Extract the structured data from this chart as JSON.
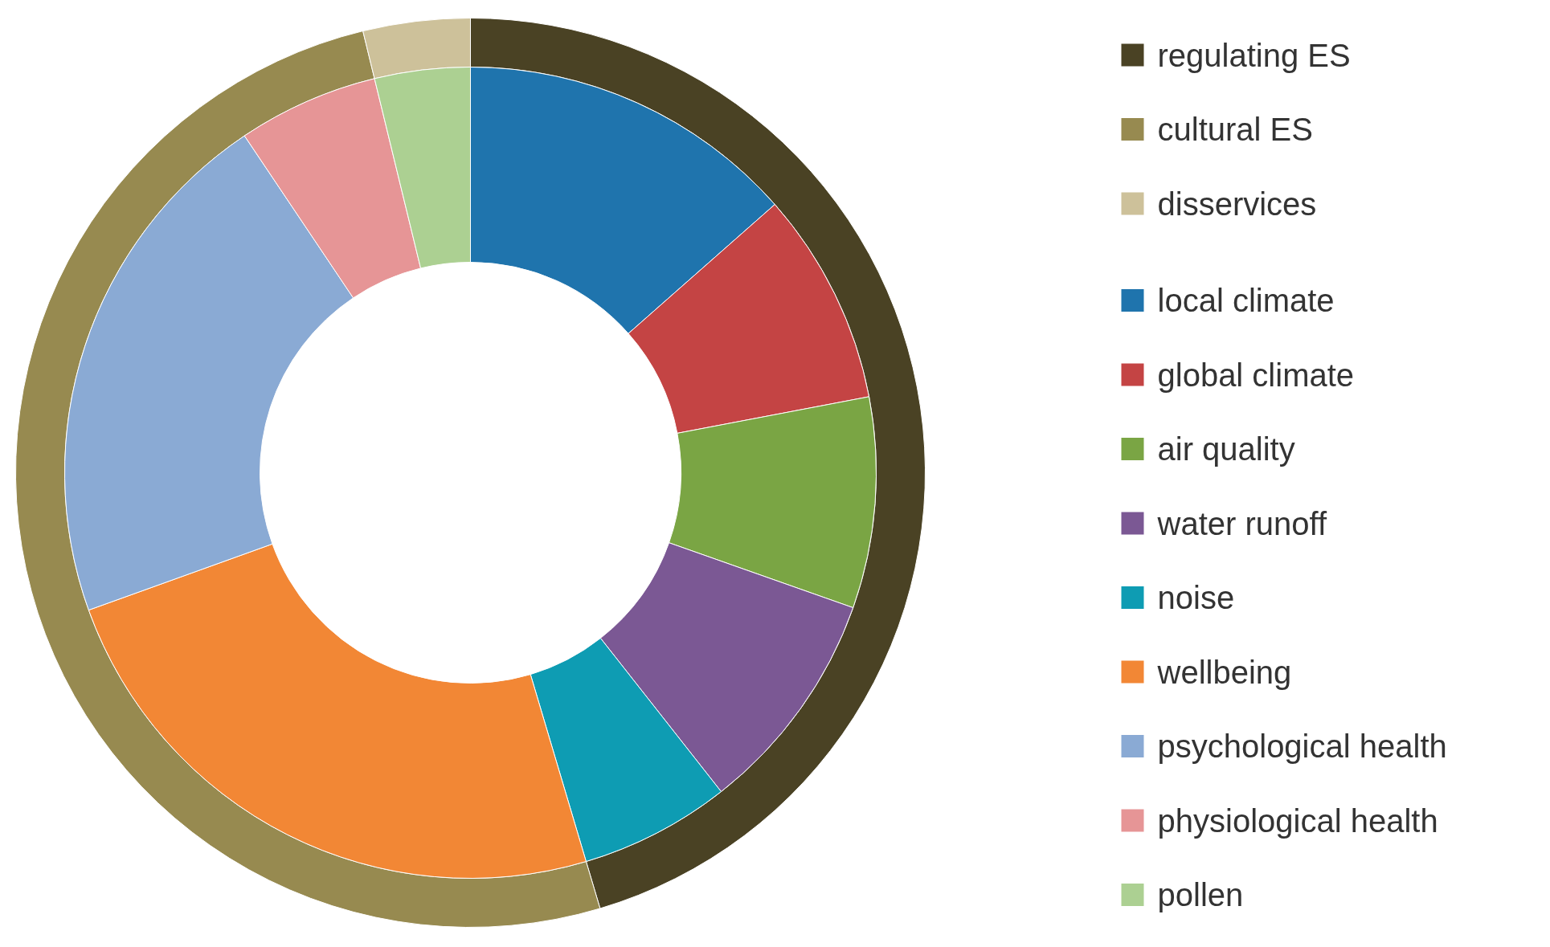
{
  "chart_data": {
    "type": "donut",
    "legend": "right",
    "categories": [
      "regulating ES",
      "cultural ES",
      "disservices",
      "local climate",
      "global climate",
      "air quality",
      "water runoff",
      "noise",
      "wellbeing",
      "psychological health",
      "physiological health",
      "pollen"
    ],
    "series": [
      {
        "values": [
          45.4,
          50.8,
          3.8,
          null,
          null,
          null,
          null,
          null,
          null,
          null,
          null,
          null
        ],
        "colors": [
          "#4a4224",
          "#978a50",
          "#cdc19a",
          null,
          null,
          null,
          null,
          null,
          null,
          null,
          null,
          null
        ]
      },
      {
        "values": [
          null,
          null,
          null,
          13.5,
          8.5,
          8.4,
          9.0,
          6.0,
          24.1,
          21.1,
          5.6,
          3.8
        ],
        "colors": [
          null,
          null,
          null,
          "#1f74ad",
          "#c44444",
          "#7aa544",
          "#7b5894",
          "#0e9cb3",
          "#f28735",
          "#8aaad4",
          "#e69596",
          "#acd092"
        ]
      }
    ]
  }
}
